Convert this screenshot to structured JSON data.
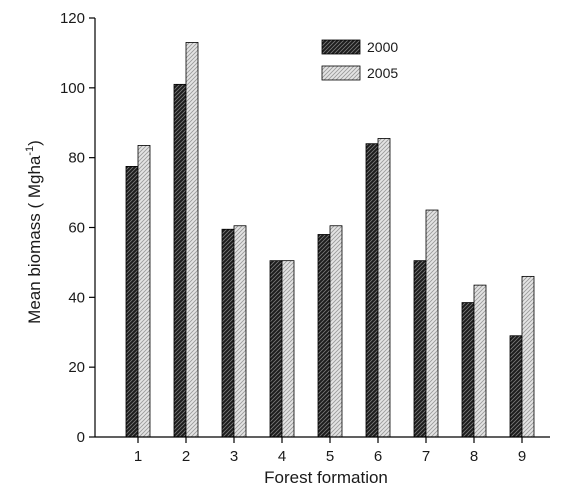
{
  "chart_data": {
    "type": "bar",
    "xlabel": "Forest formation",
    "ylabel": "Mean biomass ( Mgha",
    "ylabel_sup": "-1",
    "ylabel_suffix": ")",
    "ylim": [
      0,
      120
    ],
    "yticks": [
      "0",
      "20",
      "40",
      "60",
      "80",
      "100",
      "120"
    ],
    "categories": [
      "1",
      "2",
      "3",
      "4",
      "5",
      "6",
      "7",
      "8",
      "9"
    ],
    "series": [
      {
        "name": "2000",
        "values": [
          77.5,
          101,
          59.5,
          50.5,
          58,
          84,
          50.5,
          38.5,
          29
        ],
        "color": "#1f1f1f"
      },
      {
        "name": "2005",
        "values": [
          83.5,
          113,
          60.5,
          50.5,
          60.5,
          85.5,
          65,
          43.5,
          46
        ],
        "color": "#cfcfcf"
      }
    ],
    "legend_position": "top-right",
    "grid": false
  }
}
